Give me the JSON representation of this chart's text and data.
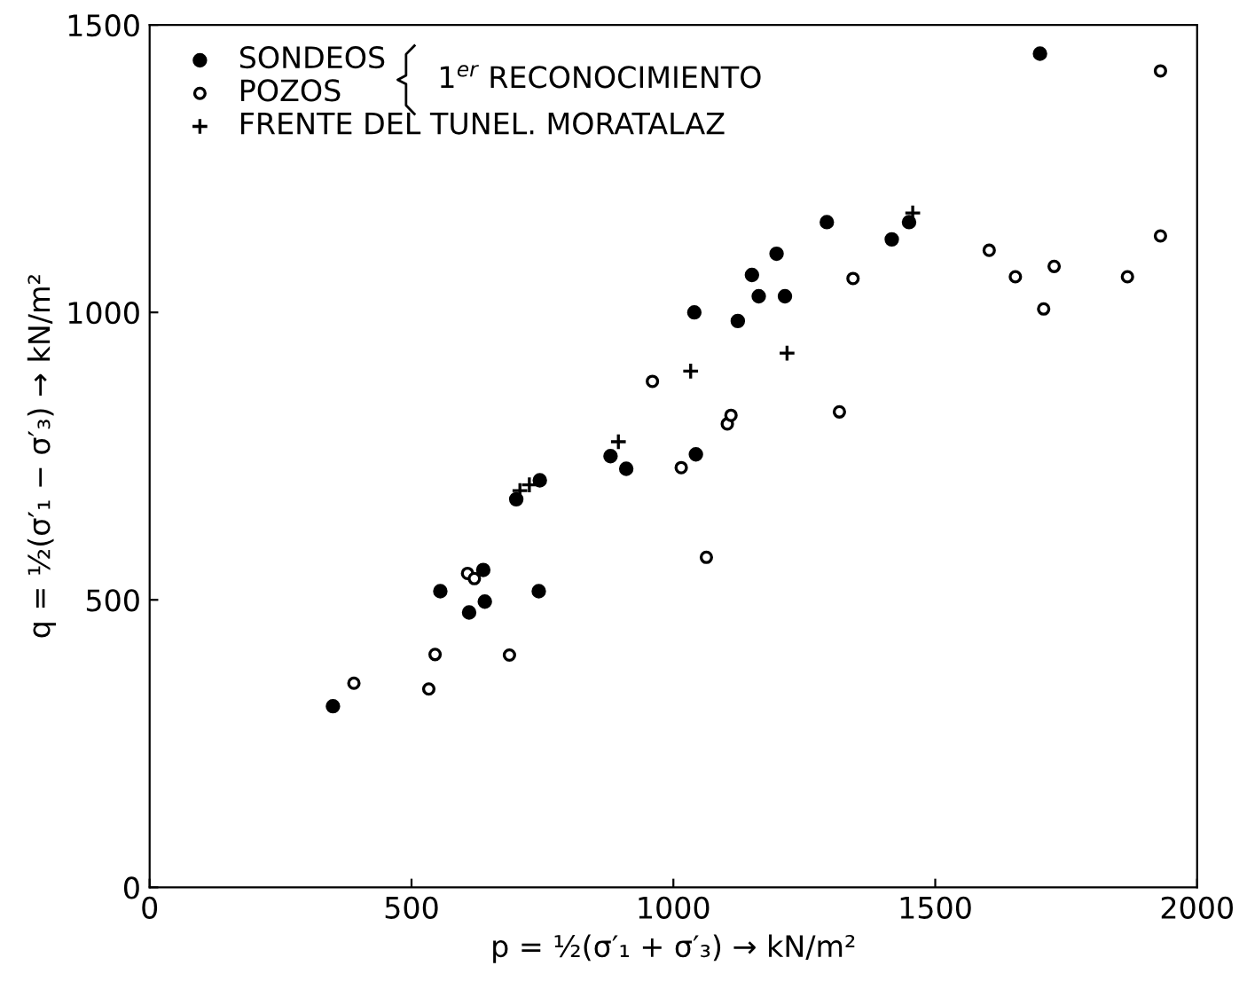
{
  "chart_data": {
    "type": "scatter",
    "xlabel": "p = ½(σ′₁ + σ′₃) → kN/m²",
    "ylabel": "q = ½(σ′₁ − σ′₃) → kN/m²",
    "xlim": [
      0,
      2000
    ],
    "ylim": [
      0,
      1500
    ],
    "xticks": [
      0,
      500,
      1000,
      1500,
      2000
    ],
    "yticks": [
      0,
      500,
      1000,
      1500
    ],
    "grid": false,
    "legend": "top left",
    "annotations": [
      "1$^{er}$ RECONOCIMIENTO"
    ],
    "series": [
      {
        "name": "SONDEOS",
        "color": "#000000",
        "marker": "circle",
        "x": [
          350,
          555,
          610,
          640,
          637,
          700,
          743,
          745,
          880,
          910,
          1040,
          1043,
          1123,
          1150,
          1163,
          1197,
          1213,
          1293,
          1417,
          1450,
          1700
        ],
        "values": [
          315,
          515,
          478,
          497,
          552,
          675,
          515,
          708,
          750,
          728,
          1000,
          753,
          985,
          1065,
          1028,
          1102,
          1028,
          1157,
          1127,
          1157,
          1450
        ]
      },
      {
        "name": "POZOS",
        "color": "#000000",
        "marker": "circle_open",
        "x": [
          390,
          533,
          545,
          607,
          620,
          687,
          960,
          1015,
          1063,
          1103,
          1110,
          1317,
          1343,
          1603,
          1653,
          1707,
          1727,
          1867,
          1930,
          1930
        ],
        "values": [
          355,
          345,
          405,
          546,
          537,
          404,
          880,
          730,
          574,
          806,
          821,
          827,
          1059,
          1108,
          1062,
          1006,
          1080,
          1062,
          1420,
          1133
        ]
      },
      {
        "name": "FRENTE DEL TUNEL. MORATALAZ",
        "color": "#000000",
        "marker": "cross",
        "x": [
          707,
          725,
          895,
          1033,
          1217,
          1457
        ],
        "values": [
          690,
          700,
          775,
          898,
          929,
          1173
        ]
      }
    ]
  }
}
